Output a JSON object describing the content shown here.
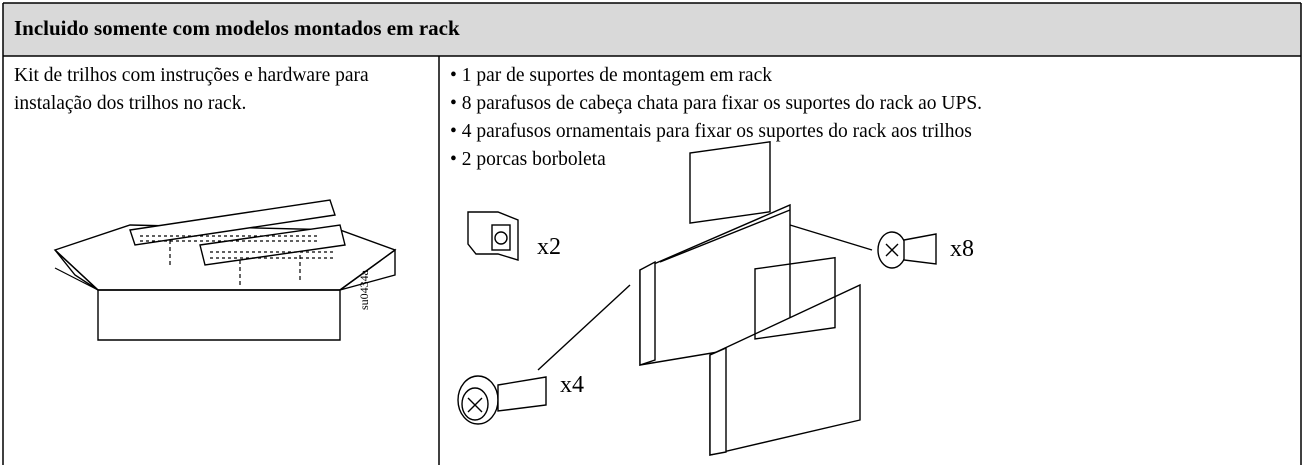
{
  "header": {
    "title": "Incluido somente com modelos montados em rack"
  },
  "left": {
    "text": "Kit de trilhos com instruções e hardware para instalação dos trilhos no rack.",
    "figure_id": "su0434a"
  },
  "right": {
    "items": [
      "1 par de suportes de montagem em rack",
      "8 parafusos de cabeça chata para fixar os suportes do rack ao UPS.",
      "4 parafusos ornamentais para fixar os suportes do rack aos trilhos",
      "2 porcas borboleta"
    ],
    "labels": [
      "x2",
      "x8",
      "x4"
    ]
  }
}
